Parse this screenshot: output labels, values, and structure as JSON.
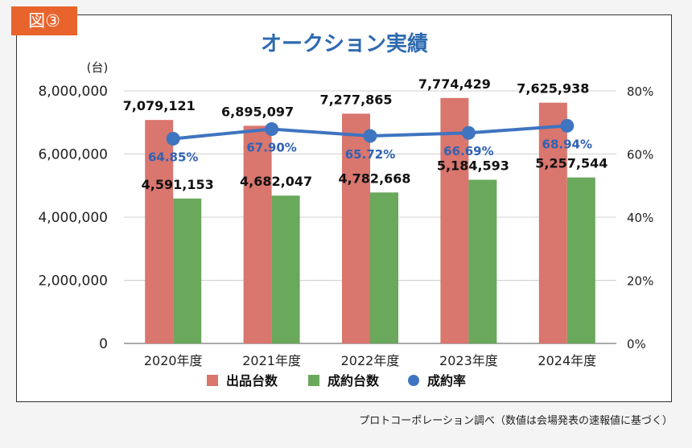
{
  "figure_tag": "図③",
  "source_note": "プロトコーポレーション調べ（数値は会場発表の速報値に基づく）",
  "colors": {
    "tag_bg": "#e8642c",
    "title": "#2e6ab0",
    "bar_listed": "#d9766e",
    "bar_sold": "#6aa85c",
    "rate_line": "#3f74c0",
    "rate_label": "#2f62b4"
  },
  "chart_data": {
    "type": "bar",
    "title": "オークション実績",
    "ylabel": "(台)",
    "categories": [
      "2020年度",
      "2021年度",
      "2022年度",
      "2023年度",
      "2024年度"
    ],
    "ylim": [
      0,
      8000000
    ],
    "y_ticks": [
      "0",
      "2,000,000",
      "4,000,000",
      "6,000,000",
      "8,000,000"
    ],
    "y2lim": [
      0,
      80
    ],
    "y2_ticks": [
      "0%",
      "20%",
      "40%",
      "60%",
      "80%"
    ],
    "grid": true,
    "legend_position": "bottom",
    "series": [
      {
        "name": "出品台数",
        "kind": "bar",
        "values": [
          7079121,
          6895097,
          7277865,
          7774429,
          7625938
        ],
        "labels": [
          "7,079,121",
          "6,895,097",
          "7,277,865",
          "7,774,429",
          "7,625,938"
        ]
      },
      {
        "name": "成約台数",
        "kind": "bar",
        "values": [
          4591153,
          4682047,
          4782668,
          5184593,
          5257544
        ],
        "labels": [
          "4,591,153",
          "4,682,047",
          "4,782,668",
          "5,184,593",
          "5,257,544"
        ]
      },
      {
        "name": "成約率",
        "kind": "line",
        "axis": "secondary",
        "values": [
          64.85,
          67.9,
          65.72,
          66.69,
          68.94
        ],
        "labels": [
          "64.85%",
          "67.90%",
          "65.72%",
          "66.69%",
          "68.94%"
        ]
      }
    ]
  }
}
